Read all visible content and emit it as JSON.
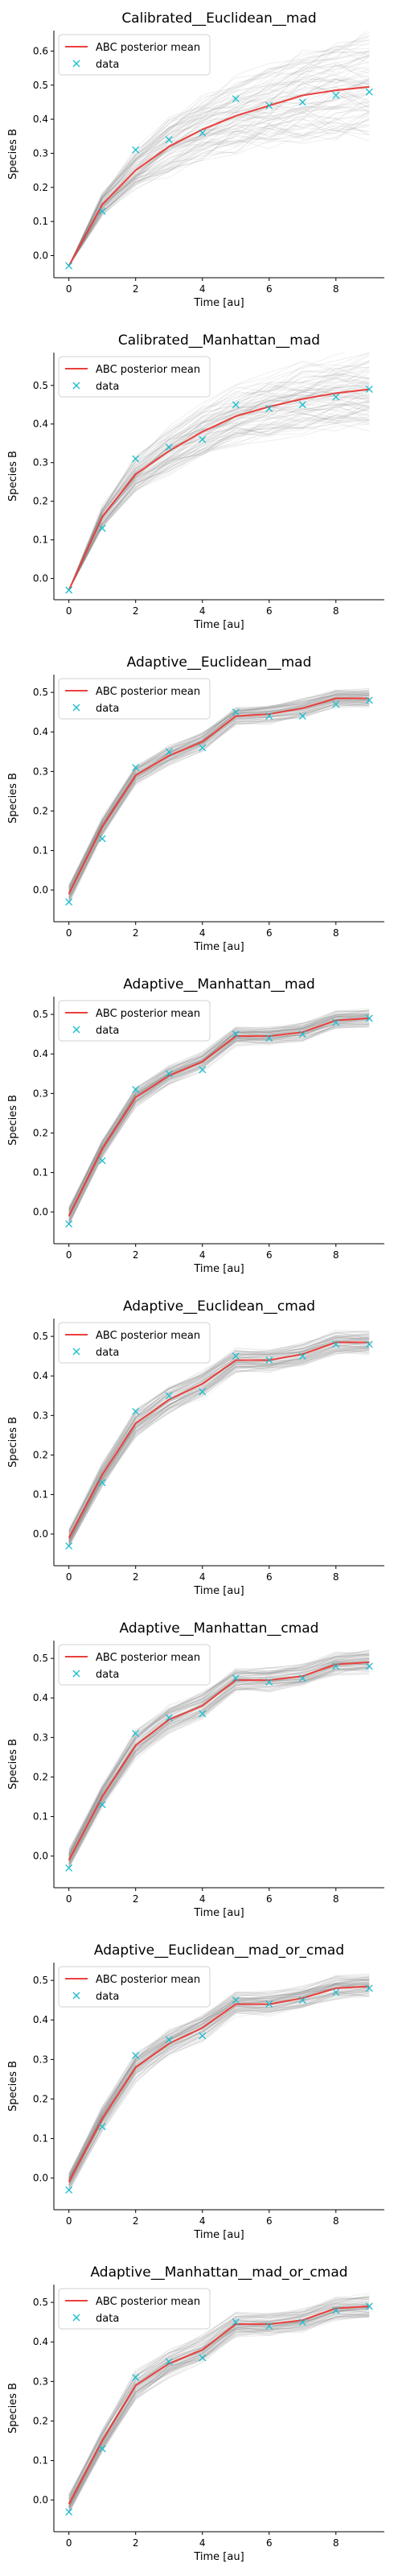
{
  "chart_data": [
    {
      "type": "line",
      "title": "Calibrated__Euclidean__mad",
      "xlabel": "Time [au]",
      "ylabel": "Species B",
      "xlim": [
        -0.45,
        9.45
      ],
      "ylim": [
        -0.065,
        0.66
      ],
      "xticks": [
        "0",
        "2",
        "4",
        "6",
        "8"
      ],
      "yticks": [
        "0.0",
        "0.1",
        "0.2",
        "0.3",
        "0.4",
        "0.5",
        "0.6"
      ],
      "grid": false,
      "legend_position": "top-left",
      "legend": [
        "ABC posterior mean",
        "data"
      ],
      "x": [
        0,
        1,
        2,
        3,
        4,
        5,
        6,
        7,
        8,
        9
      ],
      "series": [
        {
          "name": "ABC posterior mean",
          "style": "line",
          "color": "#e8403c",
          "values": [
            -0.03,
            0.15,
            0.25,
            0.32,
            0.37,
            0.41,
            0.44,
            0.47,
            0.485,
            0.495
          ]
        },
        {
          "name": "data",
          "style": "marker-x",
          "color": "#17becf",
          "values": [
            -0.03,
            0.13,
            0.31,
            0.34,
            0.36,
            0.46,
            0.44,
            0.45,
            0.47,
            0.48
          ]
        }
      ],
      "band_spread": [
        0.0,
        0.03,
        0.05,
        0.07,
        0.08,
        0.09,
        0.1,
        0.11,
        0.12,
        0.13
      ]
    },
    {
      "type": "line",
      "title": "Calibrated__Manhattan__mad",
      "xlabel": "Time [au]",
      "ylabel": "Species B",
      "xlim": [
        -0.45,
        9.45
      ],
      "ylim": [
        -0.055,
        0.585
      ],
      "xticks": [
        "0",
        "2",
        "4",
        "6",
        "8"
      ],
      "yticks": [
        "0.0",
        "0.1",
        "0.2",
        "0.3",
        "0.4",
        "0.5"
      ],
      "grid": false,
      "legend_position": "top-left",
      "legend": [
        "ABC posterior mean",
        "data"
      ],
      "x": [
        0,
        1,
        2,
        3,
        4,
        5,
        6,
        7,
        8,
        9
      ],
      "series": [
        {
          "name": "ABC posterior mean",
          "style": "line",
          "color": "#e8403c",
          "values": [
            -0.03,
            0.16,
            0.27,
            0.33,
            0.38,
            0.42,
            0.445,
            0.465,
            0.48,
            0.49
          ]
        },
        {
          "name": "data",
          "style": "marker-x",
          "color": "#17becf",
          "values": [
            -0.03,
            0.13,
            0.31,
            0.34,
            0.36,
            0.45,
            0.44,
            0.45,
            0.47,
            0.49
          ]
        }
      ],
      "band_spread": [
        0.0,
        0.025,
        0.04,
        0.05,
        0.06,
        0.065,
        0.07,
        0.075,
        0.08,
        0.085
      ]
    },
    {
      "type": "line",
      "title": "Adaptive__Euclidean__mad",
      "xlabel": "Time [au]",
      "ylabel": "Species B",
      "xlim": [
        -0.45,
        9.45
      ],
      "ylim": [
        -0.08,
        0.545
      ],
      "xticks": [
        "0",
        "2",
        "4",
        "6",
        "8"
      ],
      "yticks": [
        "0.0",
        "0.1",
        "0.2",
        "0.3",
        "0.4",
        "0.5"
      ],
      "grid": false,
      "legend_position": "top-left",
      "legend": [
        "ABC posterior mean",
        "data"
      ],
      "x": [
        0,
        1,
        2,
        3,
        4,
        5,
        6,
        7,
        8,
        9
      ],
      "series": [
        {
          "name": "ABC posterior mean",
          "style": "line",
          "color": "#e8403c",
          "values": [
            -0.01,
            0.16,
            0.29,
            0.34,
            0.375,
            0.44,
            0.445,
            0.46,
            0.485,
            0.485
          ]
        },
        {
          "name": "data",
          "style": "marker-x",
          "color": "#17becf",
          "values": [
            -0.03,
            0.13,
            0.31,
            0.35,
            0.36,
            0.45,
            0.44,
            0.44,
            0.47,
            0.48
          ]
        }
      ],
      "band_spread": [
        0.02,
        0.02,
        0.02,
        0.02,
        0.02,
        0.02,
        0.02,
        0.02,
        0.02,
        0.02
      ]
    },
    {
      "type": "line",
      "title": "Adaptive__Manhattan__mad",
      "xlabel": "Time [au]",
      "ylabel": "Species B",
      "xlim": [
        -0.45,
        9.45
      ],
      "ylim": [
        -0.08,
        0.545
      ],
      "xticks": [
        "0",
        "2",
        "4",
        "6",
        "8"
      ],
      "yticks": [
        "0.0",
        "0.1",
        "0.2",
        "0.3",
        "0.4",
        "0.5"
      ],
      "grid": false,
      "legend_position": "top-left",
      "legend": [
        "ABC posterior mean",
        "data"
      ],
      "x": [
        0,
        1,
        2,
        3,
        4,
        5,
        6,
        7,
        8,
        9
      ],
      "series": [
        {
          "name": "ABC posterior mean",
          "style": "line",
          "color": "#e8403c",
          "values": [
            -0.01,
            0.16,
            0.29,
            0.345,
            0.38,
            0.445,
            0.445,
            0.455,
            0.485,
            0.49
          ]
        },
        {
          "name": "data",
          "style": "marker-x",
          "color": "#17becf",
          "values": [
            -0.03,
            0.13,
            0.31,
            0.35,
            0.36,
            0.45,
            0.44,
            0.45,
            0.48,
            0.49
          ]
        }
      ],
      "band_spread": [
        0.02,
        0.02,
        0.02,
        0.02,
        0.02,
        0.02,
        0.02,
        0.02,
        0.02,
        0.02
      ]
    },
    {
      "type": "line",
      "title": "Adaptive__Euclidean__cmad",
      "xlabel": "Time [au]",
      "ylabel": "Species B",
      "xlim": [
        -0.45,
        9.45
      ],
      "ylim": [
        -0.08,
        0.545
      ],
      "xticks": [
        "0",
        "2",
        "4",
        "6",
        "8"
      ],
      "yticks": [
        "0.0",
        "0.1",
        "0.2",
        "0.3",
        "0.4",
        "0.5"
      ],
      "grid": false,
      "legend_position": "top-left",
      "legend": [
        "ABC posterior mean",
        "data"
      ],
      "x": [
        0,
        1,
        2,
        3,
        4,
        5,
        6,
        7,
        8,
        9
      ],
      "series": [
        {
          "name": "ABC posterior mean",
          "style": "line",
          "color": "#e8403c",
          "values": [
            -0.01,
            0.15,
            0.28,
            0.34,
            0.38,
            0.44,
            0.44,
            0.455,
            0.485,
            0.485
          ]
        },
        {
          "name": "data",
          "style": "marker-x",
          "color": "#17becf",
          "values": [
            -0.03,
            0.13,
            0.31,
            0.35,
            0.36,
            0.45,
            0.44,
            0.45,
            0.48,
            0.48
          ]
        }
      ],
      "band_spread": [
        0.02,
        0.025,
        0.03,
        0.03,
        0.03,
        0.025,
        0.025,
        0.025,
        0.025,
        0.025
      ]
    },
    {
      "type": "line",
      "title": "Adaptive__Manhattan__cmad",
      "xlabel": "Time [au]",
      "ylabel": "Species B",
      "xlim": [
        -0.45,
        9.45
      ],
      "ylim": [
        -0.08,
        0.545
      ],
      "xticks": [
        "0",
        "2",
        "4",
        "6",
        "8"
      ],
      "yticks": [
        "0.0",
        "0.1",
        "0.2",
        "0.3",
        "0.4",
        "0.5"
      ],
      "grid": false,
      "legend_position": "top-left",
      "legend": [
        "ABC posterior mean",
        "data"
      ],
      "x": [
        0,
        1,
        2,
        3,
        4,
        5,
        6,
        7,
        8,
        9
      ],
      "series": [
        {
          "name": "ABC posterior mean",
          "style": "line",
          "color": "#e8403c",
          "values": [
            -0.01,
            0.15,
            0.28,
            0.345,
            0.38,
            0.445,
            0.445,
            0.455,
            0.485,
            0.49
          ]
        },
        {
          "name": "data",
          "style": "marker-x",
          "color": "#17becf",
          "values": [
            -0.03,
            0.13,
            0.31,
            0.35,
            0.36,
            0.45,
            0.44,
            0.45,
            0.48,
            0.48
          ]
        }
      ],
      "band_spread": [
        0.02,
        0.025,
        0.03,
        0.03,
        0.03,
        0.025,
        0.025,
        0.025,
        0.025,
        0.025
      ]
    },
    {
      "type": "line",
      "title": "Adaptive__Euclidean__mad_or_cmad",
      "xlabel": "Time [au]",
      "ylabel": "Species B",
      "xlim": [
        -0.45,
        9.45
      ],
      "ylim": [
        -0.08,
        0.545
      ],
      "xticks": [
        "0",
        "2",
        "4",
        "6",
        "8"
      ],
      "yticks": [
        "0.0",
        "0.1",
        "0.2",
        "0.3",
        "0.4",
        "0.5"
      ],
      "grid": false,
      "legend_position": "top-left",
      "legend": [
        "ABC posterior mean",
        "data"
      ],
      "x": [
        0,
        1,
        2,
        3,
        4,
        5,
        6,
        7,
        8,
        9
      ],
      "series": [
        {
          "name": "ABC posterior mean",
          "style": "line",
          "color": "#e8403c",
          "values": [
            -0.01,
            0.15,
            0.28,
            0.34,
            0.38,
            0.44,
            0.44,
            0.455,
            0.48,
            0.485
          ]
        },
        {
          "name": "data",
          "style": "marker-x",
          "color": "#17becf",
          "values": [
            -0.03,
            0.13,
            0.31,
            0.35,
            0.36,
            0.45,
            0.44,
            0.45,
            0.47,
            0.48
          ]
        }
      ],
      "band_spread": [
        0.02,
        0.025,
        0.03,
        0.03,
        0.03,
        0.025,
        0.025,
        0.025,
        0.025,
        0.025
      ]
    },
    {
      "type": "line",
      "title": "Adaptive__Manhattan__mad_or_cmad",
      "xlabel": "Time [au]",
      "ylabel": "Species B",
      "xlim": [
        -0.45,
        9.45
      ],
      "ylim": [
        -0.08,
        0.545
      ],
      "xticks": [
        "0",
        "2",
        "4",
        "6",
        "8"
      ],
      "yticks": [
        "0.0",
        "0.1",
        "0.2",
        "0.3",
        "0.4",
        "0.5"
      ],
      "grid": false,
      "legend_position": "top-left",
      "legend": [
        "ABC posterior mean",
        "data"
      ],
      "x": [
        0,
        1,
        2,
        3,
        4,
        5,
        6,
        7,
        8,
        9
      ],
      "series": [
        {
          "name": "ABC posterior mean",
          "style": "line",
          "color": "#e8403c",
          "values": [
            -0.01,
            0.15,
            0.29,
            0.345,
            0.38,
            0.445,
            0.445,
            0.455,
            0.485,
            0.49
          ]
        },
        {
          "name": "data",
          "style": "marker-x",
          "color": "#17becf",
          "values": [
            -0.03,
            0.13,
            0.31,
            0.35,
            0.36,
            0.45,
            0.44,
            0.45,
            0.48,
            0.49
          ]
        }
      ],
      "band_spread": [
        0.02,
        0.025,
        0.03,
        0.03,
        0.03,
        0.025,
        0.025,
        0.025,
        0.025,
        0.025
      ]
    }
  ]
}
